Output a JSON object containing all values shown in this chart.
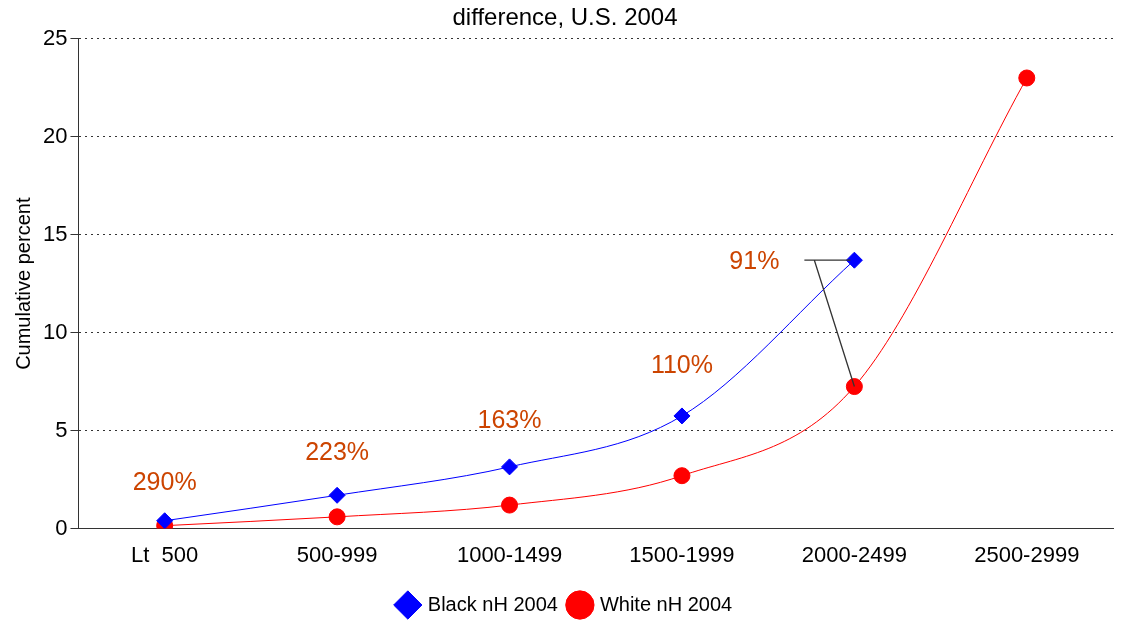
{
  "chart_data": {
    "type": "line",
    "title": "difference, U.S. 2004",
    "ylabel": "Cumulative percent",
    "categories": [
      "Lt  500",
      "500-999",
      "1000-1499",
      "1500-1999",
      "2000-2499",
      "2500-2999"
    ],
    "series": [
      {
        "name": "White nH 2004",
        "color": "#ff0000",
        "marker": "circle",
        "values": [
          0.15,
          0.6,
          1.2,
          2.7,
          7.25,
          23.0
        ]
      },
      {
        "name": "Black nH 2004",
        "color": "#0000ff",
        "marker": "diamond",
        "values": [
          0.4,
          1.7,
          3.15,
          5.75,
          13.7,
          null
        ]
      }
    ],
    "ylim": [
      0,
      25
    ],
    "yticks": [
      0,
      5,
      10,
      15,
      20,
      25
    ],
    "grid": "y",
    "legend": "bottom",
    "line_style": "solid",
    "annotations": [
      "290%",
      "223%",
      "163%",
      "110%",
      {
        "text": "91%",
        "x": "2000-2499",
        "y": 13.7
      }
    ]
  }
}
